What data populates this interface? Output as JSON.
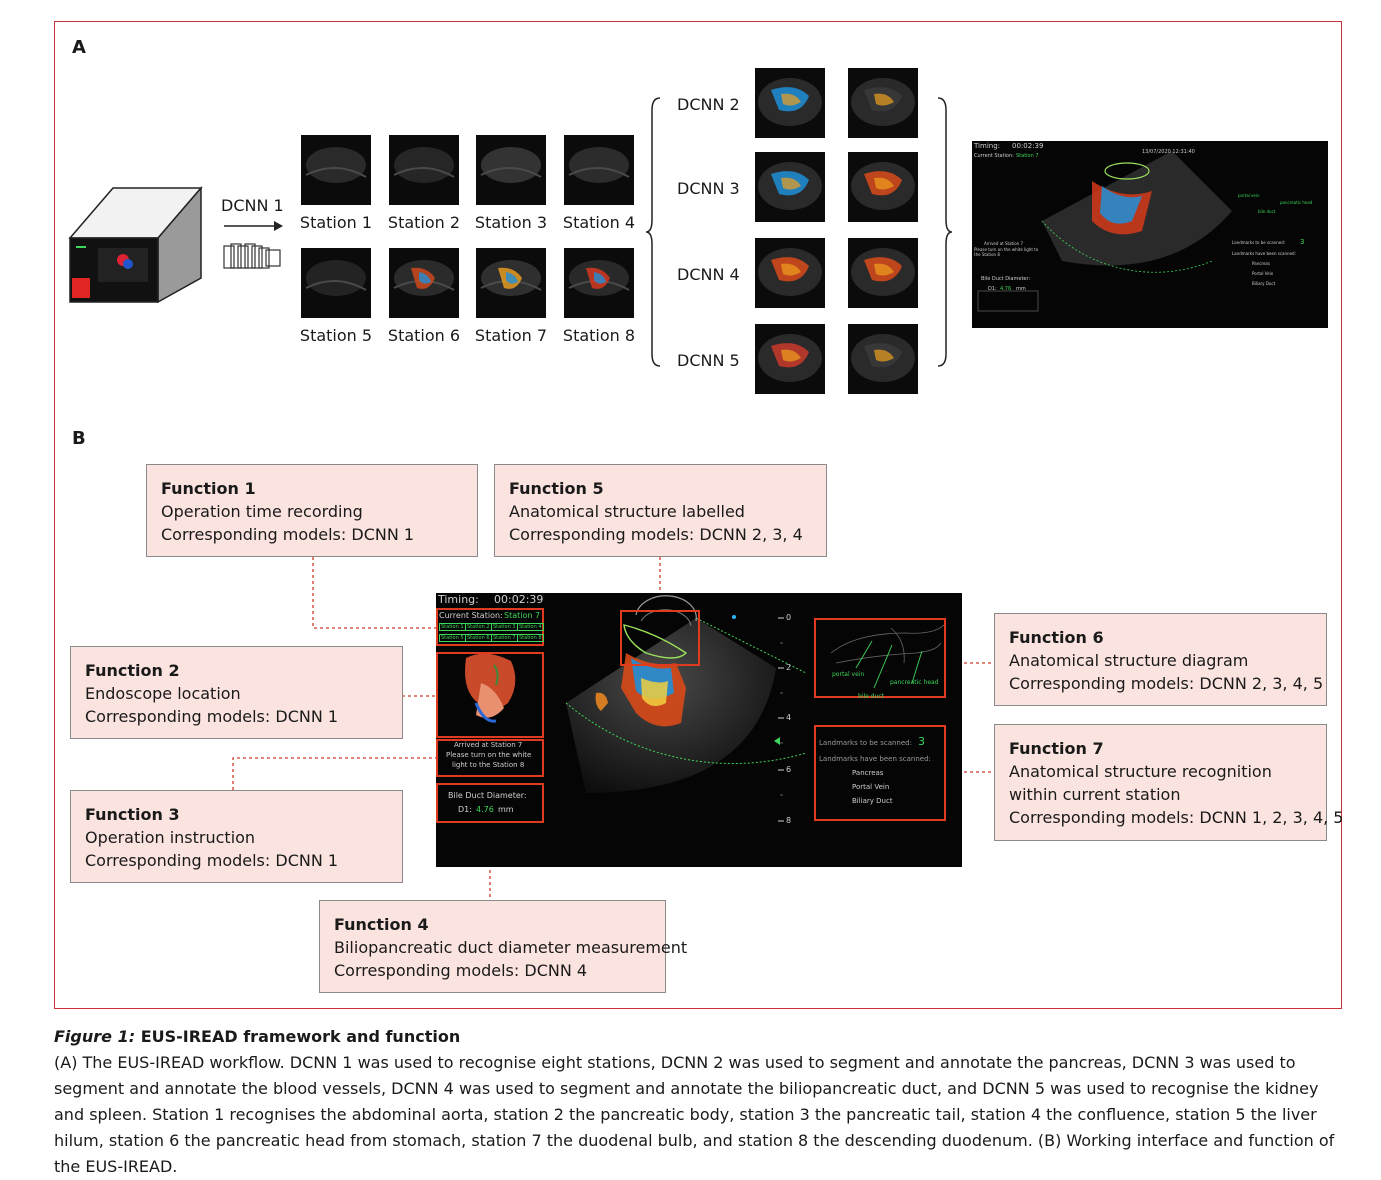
{
  "panel_a": {
    "letter": "A",
    "dcnn1_label": "DCNN 1",
    "stations": [
      {
        "label": "Station 1"
      },
      {
        "label": "Station 2"
      },
      {
        "label": "Station 3"
      },
      {
        "label": "Station 4"
      },
      {
        "label": "Station 5"
      },
      {
        "label": "Station 6"
      },
      {
        "label": "Station 7"
      },
      {
        "label": "Station 8"
      }
    ],
    "dcnn_groups": [
      {
        "label": "DCNN 2"
      },
      {
        "label": "DCNN 3"
      },
      {
        "label": "DCNN 4"
      },
      {
        "label": "DCNN 5"
      }
    ],
    "mini_ui": {
      "timing_label": "Timing:",
      "timing_value": "00:02:39",
      "current_station_label": "Current Station:",
      "current_station_value": "Station 7",
      "date": "13/07/2020 12:31:40",
      "arrived": "Arrived at Station 7",
      "instruction": "Please turn on the white light to the Station 8",
      "bile_label": "Bile Duct Diameter:",
      "d1_label": "D1:",
      "d1_value": "4.76",
      "d1_unit": "mm",
      "landmarks_to_scan_label": "Landmarks to be scanned:",
      "landmarks_to_scan_value": "3",
      "landmarks_scanned_label": "Landmarks have been scanned:",
      "scanned": [
        "Pancreas",
        "Portal Vein",
        "Biliary Duct"
      ],
      "diagram_labels": [
        "portal vein",
        "pancreatic head",
        "bile duct"
      ]
    }
  },
  "panel_b": {
    "letter": "B",
    "ui": {
      "timing_label": "Timing:",
      "timing_value": "00:02:39",
      "current_station_label": "Current Station:",
      "current_station_value": "Station 7",
      "station_chips": [
        "Station 1",
        "Station 2",
        "Station 3",
        "Station 4",
        "Station 5",
        "Station 6",
        "Station 7",
        "Station 8"
      ],
      "arrived": "Arrived at Station 7",
      "instruction_1": "Please turn on the white",
      "instruction_2": "light to the Station 8",
      "bile_label": "Bile Duct Diameter:",
      "d1_label": "D1:",
      "d1_value": "4.76",
      "d1_unit": "mm",
      "landmarks_to_scan_label": "Landmarks to be scanned:",
      "landmarks_to_scan_value": "3",
      "landmarks_scanned_label": "Landmarks have been scanned:",
      "scanned": [
        "Pancreas",
        "Portal Vein",
        "Biliary Duct"
      ],
      "diagram_labels": [
        "portal vein",
        "pancreatic head",
        "bile duct"
      ],
      "depth_ticks": [
        "0",
        "2",
        "4",
        "6",
        "8"
      ]
    },
    "functions": [
      {
        "title": "Function 1",
        "lines": [
          "Operation time recording",
          "Corresponding models: DCNN 1"
        ]
      },
      {
        "title": "Function 2",
        "lines": [
          "Endoscope location",
          "Corresponding models: DCNN 1"
        ]
      },
      {
        "title": "Function 3",
        "lines": [
          "Operation instruction",
          "Corresponding models: DCNN 1"
        ]
      },
      {
        "title": "Function 4",
        "lines": [
          "Biliopancreatic duct diameter measurement",
          "Corresponding models: DCNN 4"
        ]
      },
      {
        "title": "Function 5",
        "lines": [
          "Anatomical structure labelled",
          "Corresponding models: DCNN 2, 3, 4"
        ]
      },
      {
        "title": "Function 6",
        "lines": [
          "Anatomical structure diagram",
          "Corresponding models: DCNN 2, 3, 4, 5"
        ]
      },
      {
        "title": "Function 7",
        "lines": [
          "Anatomical structure recognition",
          "within current station",
          "Corresponding models: DCNN 1, 2, 3, 4, 5"
        ]
      }
    ]
  },
  "caption": {
    "label": "Figure 1:",
    "title": "EUS-IREAD framework and function",
    "body": "(A) The EUS-IREAD workflow. DCNN 1 was used to recognise eight stations, DCNN 2 was used to segment and annotate the pancreas, DCNN 3 was used to segment and annotate the blood vessels, DCNN 4 was used to segment and annotate the biliopancreatic duct, and DCNN 5 was used to recognise the kidney and spleen. Station 1 recognises the abdominal aorta, station 2 the pancreatic body, station 3 the pancreatic tail, station 4 the confluence, station 5 the liver hilum, station 6 the pancreatic head from stomach, station 7 the duodenal bulb, and station 8 the descending duodenum. (B) Working interface and function of the EUS-IREAD."
  }
}
